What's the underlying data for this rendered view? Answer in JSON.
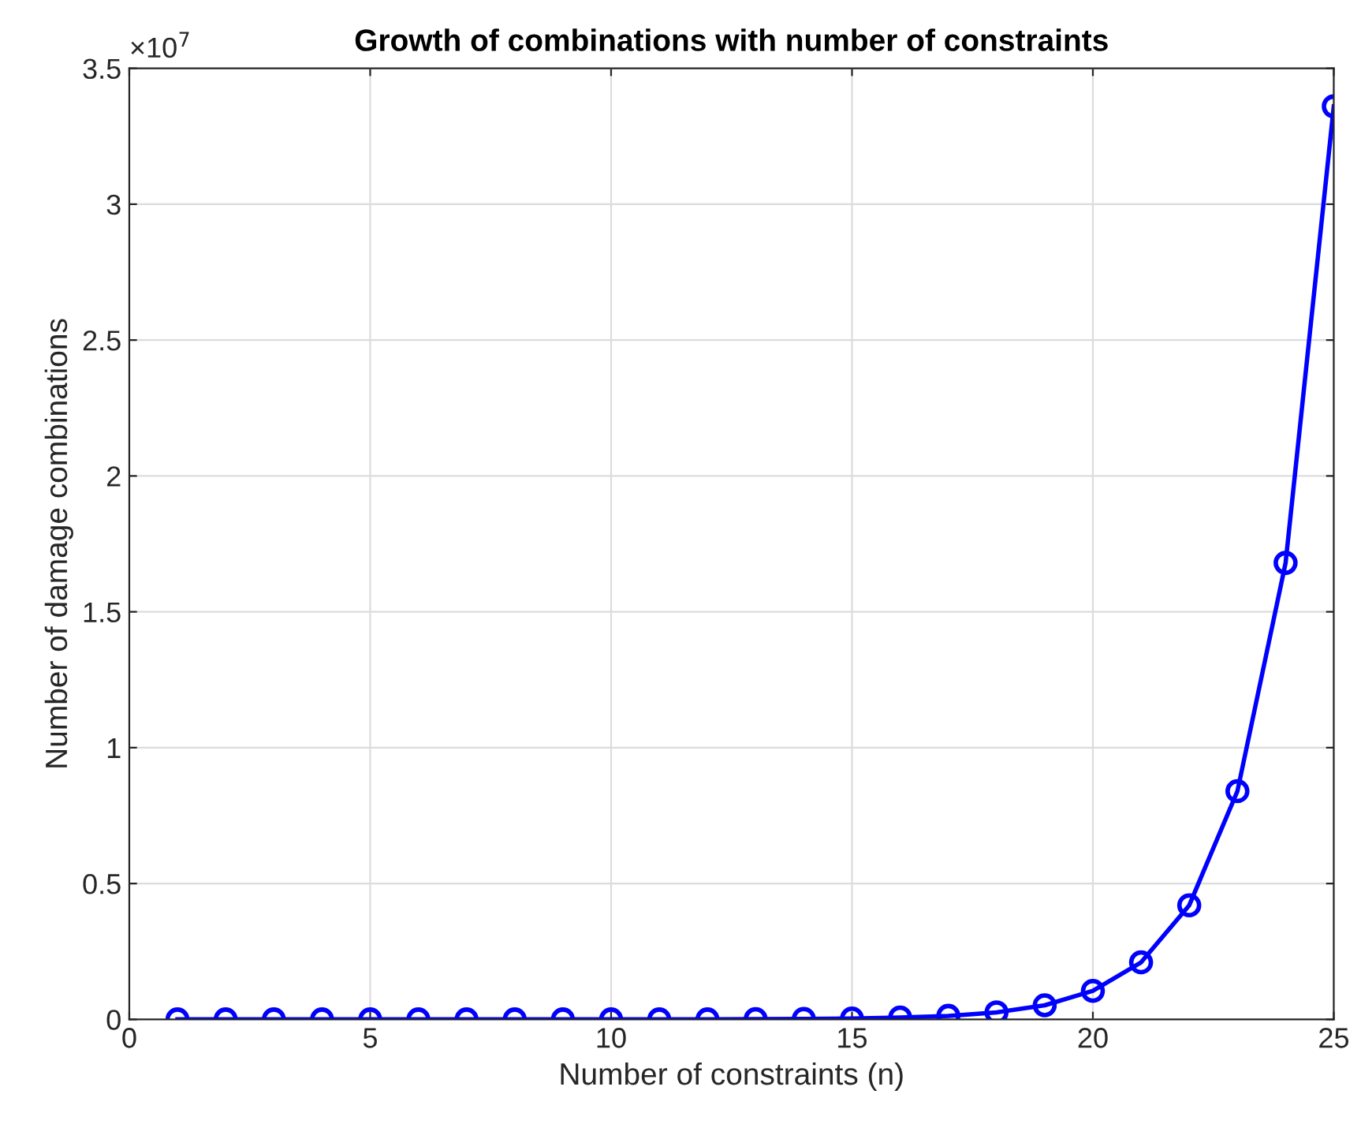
{
  "chart_data": {
    "type": "line",
    "title": "Growth of combinations with number of constraints",
    "xlabel": "Number of constraints (n)",
    "ylabel": "Number of damage combinations",
    "annotations": [
      "×10$^{7}$"
    ],
    "x": [
      1,
      2,
      3,
      4,
      5,
      6,
      7,
      8,
      9,
      10,
      11,
      12,
      13,
      14,
      15,
      16,
      17,
      18,
      19,
      20,
      21,
      22,
      23,
      24,
      25
    ],
    "series": [
      {
        "color": "#0000ff",
        "values": [
          0,
          0,
          0,
          0,
          0,
          0,
          0,
          0,
          0,
          0,
          0,
          0,
          0.001,
          0.002,
          0.003,
          0.007,
          0.013,
          0.026,
          0.052,
          0.105,
          0.21,
          0.42,
          0.84,
          1.68,
          3.36
        ]
      }
    ],
    "xlim": [
      0,
      25
    ],
    "xticks": [
      0,
      5,
      10,
      15,
      20,
      25
    ],
    "ylim": [
      0,
      3.5
    ],
    "yticks": [
      0,
      0.5,
      1,
      1.5,
      2,
      2.5,
      3,
      3.5
    ],
    "grid": true,
    "marker": "circle",
    "line_style": "solid",
    "legend": false
  }
}
